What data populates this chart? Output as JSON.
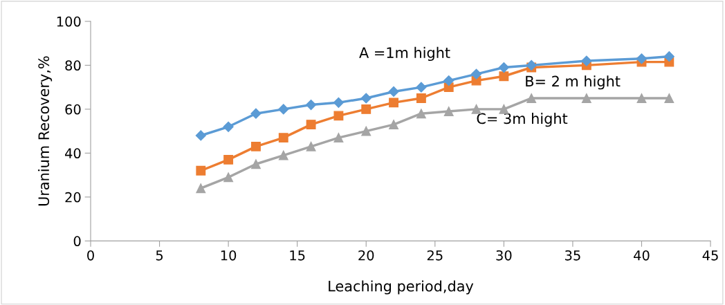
{
  "chart_data": {
    "type": "line",
    "xlabel": "Leaching period,day",
    "ylabel": "Uranium Recovery,%",
    "x": [
      8,
      10,
      12,
      14,
      16,
      18,
      20,
      22,
      24,
      26,
      28,
      30,
      32,
      36,
      40,
      42
    ],
    "series": [
      {
        "color": "#5b9bd5",
        "marker": "diamond",
        "values": [
          48,
          52,
          58,
          60,
          62,
          63,
          65,
          68,
          70,
          73,
          76,
          79,
          80,
          82,
          83,
          84
        ]
      },
      {
        "color": "#ed7d31",
        "marker": "square",
        "values": [
          32,
          37,
          43,
          47,
          53,
          57,
          60,
          63,
          65,
          70,
          73,
          75,
          79,
          80,
          81.5,
          81.5
        ]
      },
      {
        "color": "#a5a5a5",
        "marker": "triangle",
        "values": [
          24,
          29,
          35,
          39,
          43,
          47,
          50,
          53,
          58,
          59,
          60,
          60,
          65,
          65,
          65,
          65
        ]
      }
    ],
    "annotations": [
      "A =1m hight",
      "B= 2 m hight",
      "C= 3m hight"
    ],
    "xlim": [
      0,
      45
    ],
    "xticks": [
      0,
      5,
      10,
      15,
      20,
      25,
      30,
      35,
      40,
      45
    ],
    "ylim": [
      0,
      100
    ],
    "yticks": [
      0,
      20,
      40,
      60,
      80,
      100
    ],
    "grid": false,
    "legend": false
  }
}
